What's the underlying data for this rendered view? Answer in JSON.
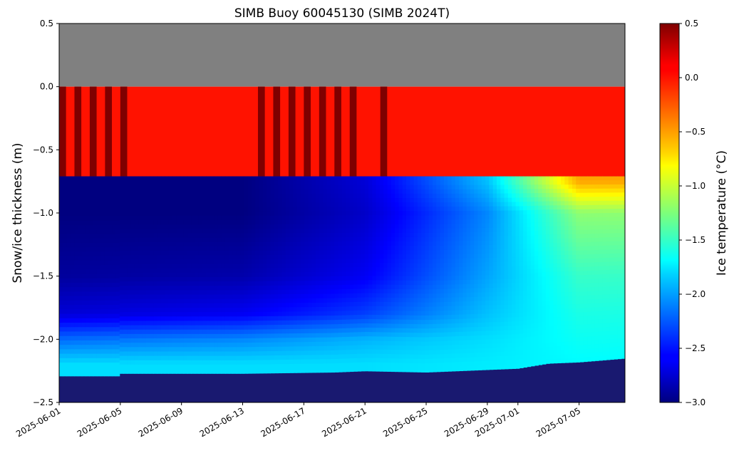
{
  "chart_data": {
    "type": "heatmap",
    "title": "SIMB Buoy 60045130 (SIMB 2024T)",
    "xlabel": "",
    "ylabel": "Snow/ice thickness (m)",
    "colorbar_label": "Ice temperature (°C)",
    "colormap": "jet",
    "x_range": [
      "2025-06-01",
      "2025-07-08"
    ],
    "x_ticks": [
      "2025-06-01",
      "2025-06-05",
      "2025-06-09",
      "2025-06-13",
      "2025-06-17",
      "2025-06-21",
      "2025-06-25",
      "2025-06-29",
      "2025-07-01",
      "2025-07-05"
    ],
    "x_tick_labels": [
      "2025-06-01",
      "2025-06-05",
      "2025-06-09",
      "2025-06-13",
      "2025-06-17",
      "2025-06-21",
      "2025-06-25",
      "2025-06-29",
      "2025-07-01",
      "2025-07-05"
    ],
    "y_range": [
      -2.5,
      0.5
    ],
    "y_ticks": [
      0.5,
      0.0,
      -0.5,
      -1.0,
      -1.5,
      -2.0,
      -2.5
    ],
    "y_tick_labels": [
      "0.5",
      "0.0",
      "−0.5",
      "−1.0",
      "−1.5",
      "−2.0",
      "−2.5"
    ],
    "color_range": [
      -3.0,
      0.5
    ],
    "colorbar_ticks": [
      0.5,
      0.0,
      -0.5,
      -1.0,
      -1.5,
      -2.0,
      -2.5,
      -3.0
    ],
    "colorbar_tick_labels": [
      "0.5",
      "0.0",
      "−0.5",
      "−1.0",
      "−1.5",
      "−2.0",
      "−2.5",
      "−3.0"
    ],
    "layers": {
      "air_above_surface": {
        "color": "#808080",
        "from_m": 0.0,
        "to_m": 0.5
      },
      "snow_layer": {
        "from_m": -0.71,
        "to_m": 0.0,
        "typical_temperature_c": 0.0
      },
      "ice_layer": {
        "top_m": -0.71
      },
      "water_below_ice": {
        "color": "#191970"
      }
    },
    "ice_bottom_depth_m": [
      [
        "2025-06-01",
        -2.29
      ],
      [
        "2025-06-05",
        -2.29
      ],
      [
        "2025-06-05",
        -2.27
      ],
      [
        "2025-06-13",
        -2.27
      ],
      [
        "2025-06-19",
        -2.26
      ],
      [
        "2025-06-21",
        -2.25
      ],
      [
        "2025-06-25",
        -2.26
      ],
      [
        "2025-06-27",
        -2.25
      ],
      [
        "2025-06-29",
        -2.24
      ],
      [
        "2025-07-01",
        -2.23
      ],
      [
        "2025-07-03",
        -2.19
      ],
      [
        "2025-07-05",
        -2.18
      ],
      [
        "2025-07-07",
        -2.16
      ],
      [
        "2025-07-08",
        -2.15
      ]
    ],
    "ice_temperature_profile_c": [
      {
        "date": "2025-06-01",
        "depth_m": [
          -0.75,
          -1.0,
          -1.5,
          -1.8,
          -2.0,
          -2.2
        ],
        "temp_c": [
          -3.0,
          -3.0,
          -2.9,
          -2.7,
          -2.2,
          -1.8
        ]
      },
      {
        "date": "2025-06-13",
        "depth_m": [
          -0.75,
          -1.0,
          -1.5,
          -1.8,
          -2.0,
          -2.2
        ],
        "temp_c": [
          -3.0,
          -3.0,
          -2.85,
          -2.6,
          -2.1,
          -1.8
        ]
      },
      {
        "date": "2025-06-21",
        "depth_m": [
          -0.75,
          -1.0,
          -1.5,
          -1.8,
          -2.0,
          -2.2
        ],
        "temp_c": [
          -2.7,
          -2.75,
          -2.6,
          -2.35,
          -1.95,
          -1.8
        ]
      },
      {
        "date": "2025-06-29",
        "depth_m": [
          -0.75,
          -1.0,
          -1.5,
          -1.8,
          -2.0,
          -2.2
        ],
        "temp_c": [
          -1.9,
          -2.1,
          -2.0,
          -1.9,
          -1.8,
          -1.75
        ]
      },
      {
        "date": "2025-07-05",
        "depth_m": [
          -0.75,
          -1.0,
          -1.5,
          -1.8,
          -2.0,
          -2.2
        ],
        "temp_c": [
          -0.5,
          -1.2,
          -1.5,
          -1.6,
          -1.65,
          -1.7
        ]
      }
    ],
    "snow_cold_column_dates": [
      "2025-06-01",
      "2025-06-02",
      "2025-06-03",
      "2025-06-04",
      "2025-06-05",
      "2025-06-14",
      "2025-06-15",
      "2025-06-16",
      "2025-06-17",
      "2025-06-18",
      "2025-06-19",
      "2025-06-20",
      "2025-06-22"
    ]
  }
}
